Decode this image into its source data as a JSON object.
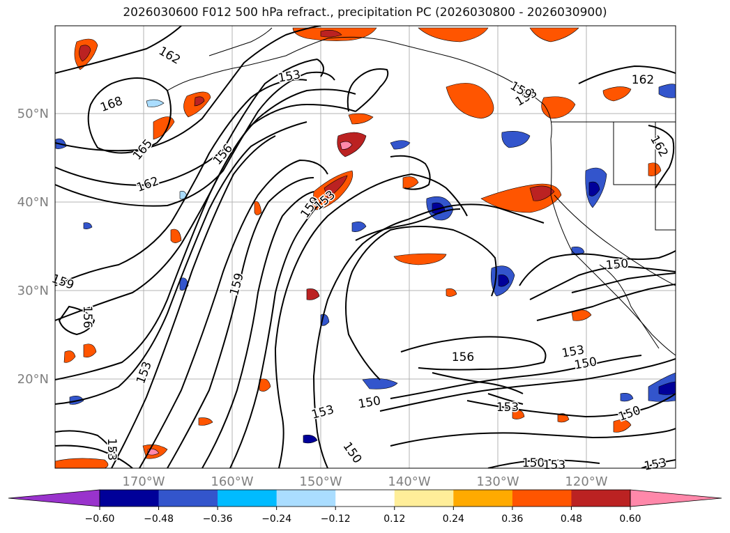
{
  "title": "2026030600 F012 500 hPa refract., precipitation PC (2026030800 - 2026030900)",
  "map": {
    "lon_ticks": [
      "170°W",
      "160°W",
      "150°W",
      "140°W",
      "130°W",
      "120°W"
    ],
    "lat_ticks": [
      "50°N",
      "40°N",
      "30°N",
      "20°N"
    ],
    "contour_labels": [
      {
        "text": "162"
      },
      {
        "text": "168"
      },
      {
        "text": "165"
      },
      {
        "text": "162"
      },
      {
        "text": "153"
      },
      {
        "text": "156"
      },
      {
        "text": "159"
      },
      {
        "text": "153"
      },
      {
        "text": "159"
      },
      {
        "text": "156"
      },
      {
        "text": "159"
      },
      {
        "text": "153"
      },
      {
        "text": "150"
      },
      {
        "text": "153"
      },
      {
        "text": "150"
      },
      {
        "text": "153"
      },
      {
        "text": "150"
      },
      {
        "text": "153"
      },
      {
        "text": "156"
      },
      {
        "text": "153"
      },
      {
        "text": "150"
      },
      {
        "text": "150"
      },
      {
        "text": "153"
      },
      {
        "text": "153"
      },
      {
        "text": "150"
      },
      {
        "text": "153"
      },
      {
        "text": "162"
      },
      {
        "text": "162"
      },
      {
        "text": "159"
      }
    ]
  },
  "colorbar": {
    "colors": [
      "#9933cc",
      "#000099",
      "#3355cc",
      "#00bbff",
      "#aaddff",
      "#ffffff",
      "#ffee99",
      "#ffaa00",
      "#ff5500",
      "#bb2222",
      "#ff88aa"
    ],
    "tick_labels": [
      "−0.60",
      "−0.48",
      "−0.36",
      "−0.24",
      "−0.12",
      "0.12",
      "0.24",
      "0.36",
      "0.48",
      "0.60"
    ]
  }
}
